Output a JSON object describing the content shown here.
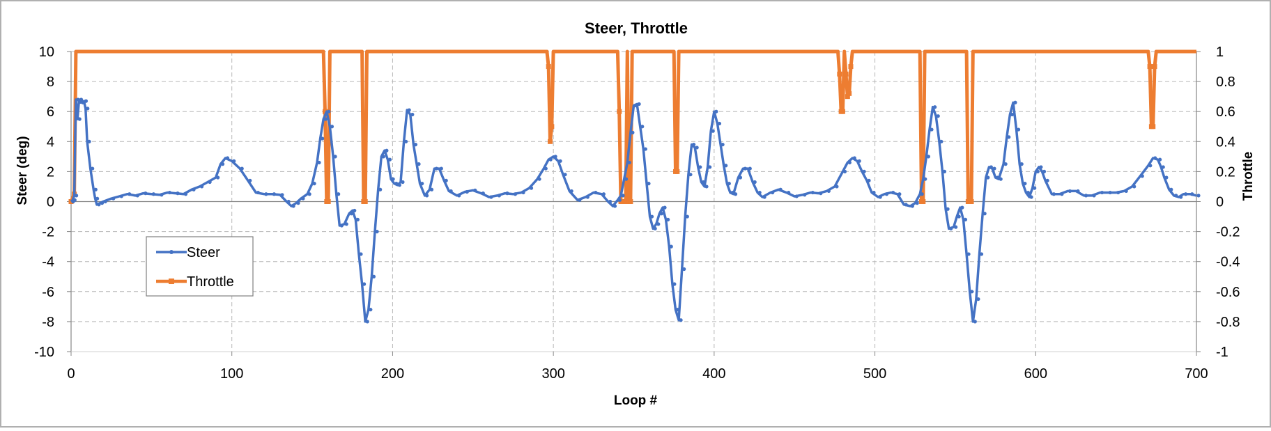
{
  "chart_data": {
    "type": "line",
    "title": "Steer, Throttle",
    "xlabel": "Loop #",
    "ylabel": "Steer (deg)",
    "y2label": "Throttle",
    "xlim": [
      0,
      700
    ],
    "ylim": [
      -10,
      10
    ],
    "y2lim": [
      -1,
      1
    ],
    "x_ticks": [
      "0",
      "100",
      "200",
      "300",
      "400",
      "500",
      "600",
      "700"
    ],
    "y_ticks": [
      "-10",
      "-8",
      "-6",
      "-4",
      "-2",
      "0",
      "2",
      "4",
      "6",
      "8",
      "10"
    ],
    "y2_ticks": [
      "-1",
      "-0.8",
      "-0.6",
      "-0.4",
      "-0.2",
      "0",
      "0.2",
      "0.4",
      "0.6",
      "0.8",
      "1"
    ],
    "grid": true,
    "legend_position": "left",
    "series": [
      {
        "name": "Steer",
        "axis": "left",
        "color": "#4472C4",
        "points": [
          [
            0,
            0
          ],
          [
            1,
            0.1
          ],
          [
            2,
            0.4
          ],
          [
            3,
            6.8
          ],
          [
            4,
            5.5
          ],
          [
            5,
            6.8
          ],
          [
            6,
            6.6
          ],
          [
            8,
            6.7
          ],
          [
            9,
            6.2
          ],
          [
            10,
            4.0
          ],
          [
            12,
            2.2
          ],
          [
            14,
            0.8
          ],
          [
            15,
            0.2
          ],
          [
            16,
            -0.2
          ],
          [
            18,
            -0.1
          ],
          [
            20,
            0.0
          ],
          [
            25,
            0.2
          ],
          [
            30,
            0.35
          ],
          [
            35,
            0.5
          ],
          [
            40,
            0.4
          ],
          [
            45,
            0.55
          ],
          [
            50,
            0.5
          ],
          [
            55,
            0.45
          ],
          [
            60,
            0.6
          ],
          [
            65,
            0.55
          ],
          [
            70,
            0.5
          ],
          [
            75,
            0.8
          ],
          [
            80,
            1.0
          ],
          [
            85,
            1.3
          ],
          [
            90,
            1.6
          ],
          [
            93,
            2.5
          ],
          [
            96,
            2.9
          ],
          [
            100,
            2.7
          ],
          [
            105,
            2.2
          ],
          [
            110,
            1.4
          ],
          [
            115,
            0.6
          ],
          [
            120,
            0.5
          ],
          [
            125,
            0.5
          ],
          [
            130,
            0.45
          ],
          [
            134,
            0.0
          ],
          [
            137,
            -0.3
          ],
          [
            140,
            -0.1
          ],
          [
            143,
            0.2
          ],
          [
            147,
            0.5
          ],
          [
            150,
            1.2
          ],
          [
            153,
            2.6
          ],
          [
            155,
            4.2
          ],
          [
            157,
            5.5
          ],
          [
            159,
            6.0
          ],
          [
            161,
            5.0
          ],
          [
            163,
            3.0
          ],
          [
            165,
            0.5
          ],
          [
            167,
            -1.6
          ],
          [
            170,
            -1.5
          ],
          [
            173,
            -0.8
          ],
          [
            175,
            -0.6
          ],
          [
            177,
            -1.2
          ],
          [
            179,
            -3.5
          ],
          [
            181,
            -5.5
          ],
          [
            183,
            -8.0
          ],
          [
            185,
            -7.2
          ],
          [
            187,
            -5.0
          ],
          [
            189,
            -2.0
          ],
          [
            191,
            0.8
          ],
          [
            193,
            3.0
          ],
          [
            195,
            3.4
          ],
          [
            197,
            2.8
          ],
          [
            199,
            1.5
          ],
          [
            201,
            1.2
          ],
          [
            203,
            1.1
          ],
          [
            205,
            1.3
          ],
          [
            207,
            4.0
          ],
          [
            209,
            6.1
          ],
          [
            211,
            5.8
          ],
          [
            213,
            3.8
          ],
          [
            215,
            2.5
          ],
          [
            217,
            1.2
          ],
          [
            220,
            0.4
          ],
          [
            223,
            0.8
          ],
          [
            226,
            2.2
          ],
          [
            229,
            2.2
          ],
          [
            232,
            1.4
          ],
          [
            235,
            0.7
          ],
          [
            240,
            0.4
          ],
          [
            245,
            0.65
          ],
          [
            250,
            0.75
          ],
          [
            255,
            0.55
          ],
          [
            260,
            0.3
          ],
          [
            265,
            0.4
          ],
          [
            270,
            0.55
          ],
          [
            275,
            0.5
          ],
          [
            280,
            0.6
          ],
          [
            285,
            0.9
          ],
          [
            290,
            1.5
          ],
          [
            294,
            2.2
          ],
          [
            297,
            2.8
          ],
          [
            300,
            3.0
          ],
          [
            303,
            2.7
          ],
          [
            306,
            1.8
          ],
          [
            310,
            0.7
          ],
          [
            315,
            0.1
          ],
          [
            320,
            0.3
          ],
          [
            325,
            0.6
          ],
          [
            330,
            0.5
          ],
          [
            334,
            0.0
          ],
          [
            337,
            -0.3
          ],
          [
            340,
            0.1
          ],
          [
            342,
            0.4
          ],
          [
            344,
            1.5
          ],
          [
            346,
            2.6
          ],
          [
            348,
            4.6
          ],
          [
            350,
            6.4
          ],
          [
            352,
            6.5
          ],
          [
            354,
            5.0
          ],
          [
            356,
            3.5
          ],
          [
            358,
            1.2
          ],
          [
            360,
            -1.0
          ],
          [
            362,
            -1.8
          ],
          [
            364,
            -1.5
          ],
          [
            366,
            -0.8
          ],
          [
            368,
            -0.4
          ],
          [
            370,
            -1.2
          ],
          [
            372,
            -3.0
          ],
          [
            374,
            -5.5
          ],
          [
            376,
            -7.2
          ],
          [
            378,
            -7.9
          ],
          [
            380,
            -4.5
          ],
          [
            382,
            -1.0
          ],
          [
            384,
            1.8
          ],
          [
            386,
            3.8
          ],
          [
            388,
            3.6
          ],
          [
            390,
            2.3
          ],
          [
            392,
            1.3
          ],
          [
            394,
            1.0
          ],
          [
            396,
            2.3
          ],
          [
            398,
            4.7
          ],
          [
            400,
            6.0
          ],
          [
            402,
            5.2
          ],
          [
            404,
            3.8
          ],
          [
            406,
            2.4
          ],
          [
            408,
            1.2
          ],
          [
            410,
            0.6
          ],
          [
            412,
            0.5
          ],
          [
            415,
            1.6
          ],
          [
            418,
            2.2
          ],
          [
            421,
            2.2
          ],
          [
            424,
            1.3
          ],
          [
            427,
            0.6
          ],
          [
            430,
            0.3
          ],
          [
            435,
            0.6
          ],
          [
            440,
            0.8
          ],
          [
            445,
            0.6
          ],
          [
            450,
            0.35
          ],
          [
            455,
            0.45
          ],
          [
            460,
            0.6
          ],
          [
            465,
            0.55
          ],
          [
            470,
            0.7
          ],
          [
            475,
            1.0
          ],
          [
            480,
            2.0
          ],
          [
            483,
            2.6
          ],
          [
            486,
            2.9
          ],
          [
            489,
            2.7
          ],
          [
            492,
            2.0
          ],
          [
            495,
            1.4
          ],
          [
            498,
            0.6
          ],
          [
            502,
            0.3
          ],
          [
            506,
            0.5
          ],
          [
            510,
            0.6
          ],
          [
            514,
            0.5
          ],
          [
            518,
            -0.2
          ],
          [
            522,
            -0.3
          ],
          [
            525,
            -0.1
          ],
          [
            528,
            0.5
          ],
          [
            530,
            1.5
          ],
          [
            532,
            3.0
          ],
          [
            534,
            4.8
          ],
          [
            536,
            6.3
          ],
          [
            538,
            5.7
          ],
          [
            540,
            4.0
          ],
          [
            542,
            2.0
          ],
          [
            544,
            -0.5
          ],
          [
            546,
            -1.8
          ],
          [
            549,
            -1.7
          ],
          [
            551,
            -1.0
          ],
          [
            553,
            -0.4
          ],
          [
            555,
            -1.2
          ],
          [
            557,
            -3.5
          ],
          [
            559,
            -6.0
          ],
          [
            561,
            -8.0
          ],
          [
            563,
            -6.5
          ],
          [
            565,
            -3.5
          ],
          [
            567,
            -0.8
          ],
          [
            569,
            1.6
          ],
          [
            571,
            2.3
          ],
          [
            573,
            2.2
          ],
          [
            575,
            1.6
          ],
          [
            577,
            1.5
          ],
          [
            580,
            2.5
          ],
          [
            582,
            4.3
          ],
          [
            584,
            5.8
          ],
          [
            586,
            6.6
          ],
          [
            588,
            4.8
          ],
          [
            590,
            2.5
          ],
          [
            592,
            1.2
          ],
          [
            594,
            0.6
          ],
          [
            596,
            0.3
          ],
          [
            598,
            0.9
          ],
          [
            600,
            2.0
          ],
          [
            602,
            2.3
          ],
          [
            604,
            2.0
          ],
          [
            606,
            1.4
          ],
          [
            610,
            0.5
          ],
          [
            615,
            0.5
          ],
          [
            620,
            0.7
          ],
          [
            625,
            0.7
          ],
          [
            630,
            0.4
          ],
          [
            635,
            0.4
          ],
          [
            640,
            0.6
          ],
          [
            645,
            0.6
          ],
          [
            650,
            0.6
          ],
          [
            655,
            0.7
          ],
          [
            660,
            1.0
          ],
          [
            665,
            1.7
          ],
          [
            670,
            2.4
          ],
          [
            673,
            2.9
          ],
          [
            676,
            2.8
          ],
          [
            678,
            2.3
          ],
          [
            680,
            1.6
          ],
          [
            683,
            0.8
          ],
          [
            686,
            0.4
          ],
          [
            689,
            0.3
          ],
          [
            692,
            0.5
          ],
          [
            696,
            0.5
          ],
          [
            700,
            0.4
          ]
        ]
      },
      {
        "name": "Throttle",
        "axis": "right",
        "color": "#ED7D31",
        "points": [
          [
            0,
            0
          ],
          [
            2,
            0.05
          ],
          [
            3,
            1.0
          ],
          [
            157,
            1.0
          ],
          [
            158,
            0.6
          ],
          [
            159,
            0.0
          ],
          [
            160,
            0.0
          ],
          [
            161,
            1.0
          ],
          [
            181,
            1.0
          ],
          [
            182,
            0.0
          ],
          [
            183,
            0.0
          ],
          [
            184,
            1.0
          ],
          [
            296,
            1.0
          ],
          [
            297,
            0.9
          ],
          [
            298,
            0.4
          ],
          [
            299,
            0.5
          ],
          [
            300,
            1.0
          ],
          [
            340,
            1.0
          ],
          [
            341,
            0.6
          ],
          [
            342,
            0.0
          ],
          [
            345,
            0.0
          ],
          [
            346,
            1.0
          ],
          [
            347,
            0.0
          ],
          [
            348,
            0.0
          ],
          [
            349,
            1.0
          ],
          [
            375,
            1.0
          ],
          [
            376,
            0.2
          ],
          [
            377,
            0.2
          ],
          [
            378,
            1.0
          ],
          [
            477,
            1.0
          ],
          [
            478,
            0.85
          ],
          [
            479,
            0.6
          ],
          [
            480,
            0.6
          ],
          [
            481,
            1.0
          ],
          [
            482,
            0.85
          ],
          [
            483,
            0.7
          ],
          [
            484,
            0.72
          ],
          [
            485,
            0.9
          ],
          [
            486,
            1.0
          ],
          [
            528,
            1.0
          ],
          [
            529,
            0.0
          ],
          [
            530,
            0.0
          ],
          [
            531,
            1.0
          ],
          [
            557,
            1.0
          ],
          [
            558,
            0.0
          ],
          [
            560,
            0.0
          ],
          [
            561,
            1.0
          ],
          [
            670,
            1.0
          ],
          [
            671,
            0.9
          ],
          [
            672,
            0.5
          ],
          [
            673,
            0.5
          ],
          [
            674,
            0.9
          ],
          [
            675,
            1.0
          ],
          [
            700,
            1.0
          ]
        ]
      }
    ]
  }
}
